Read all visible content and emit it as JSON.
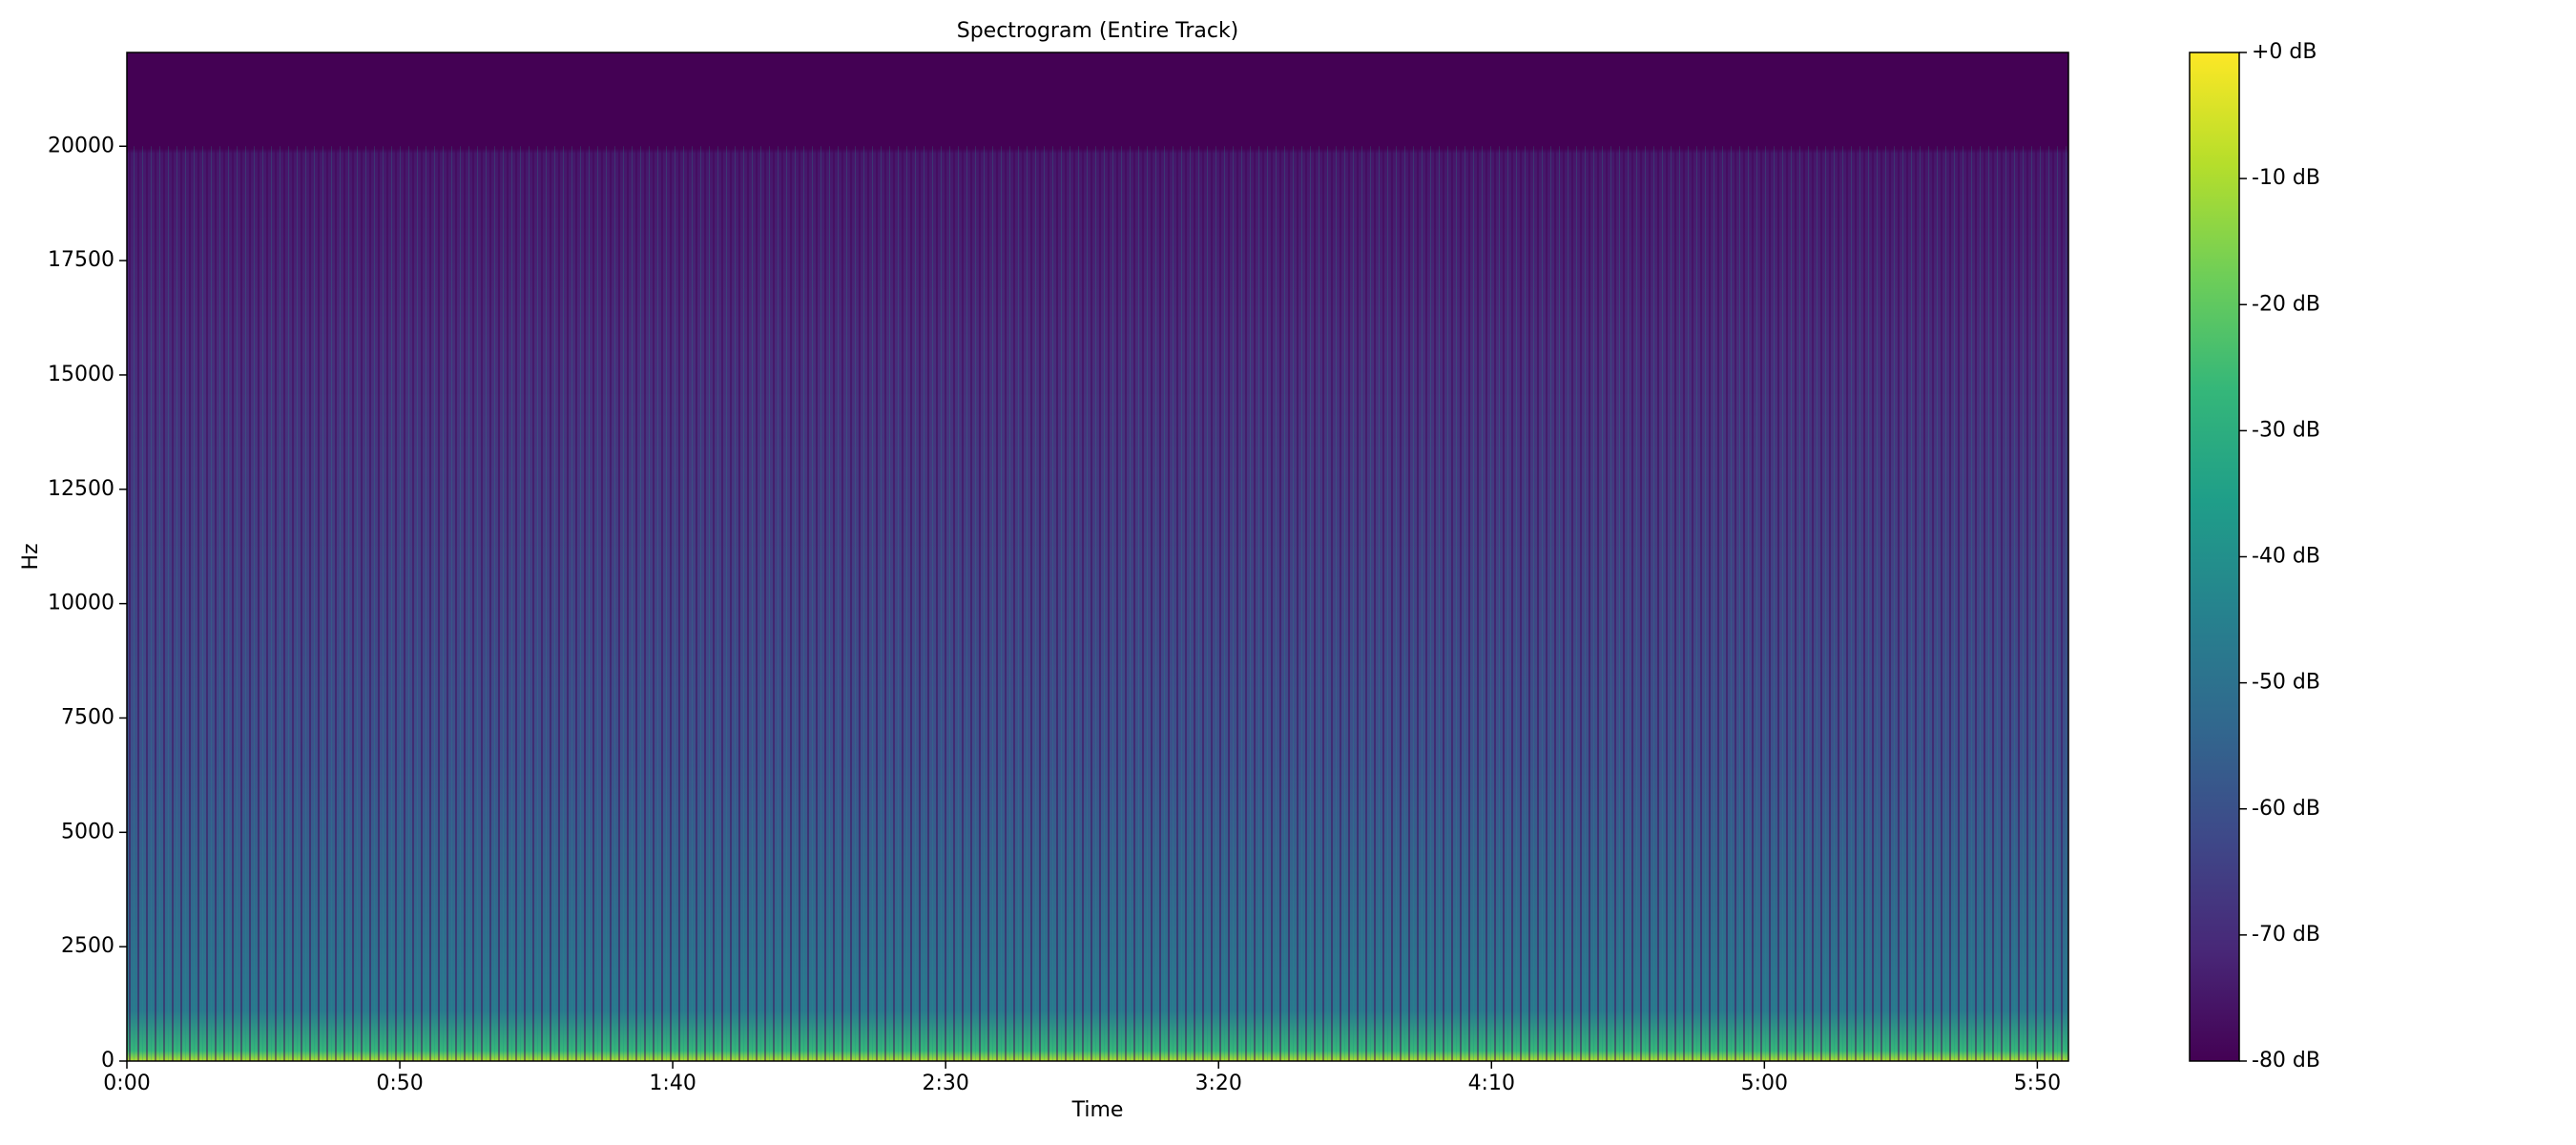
{
  "chart_data": {
    "type": "spectrogram",
    "title": "Spectrogram (Entire Track)",
    "xlabel": "Time",
    "ylabel": "Hz",
    "xlim": [
      0,
      355.7
    ],
    "xticks": [
      {
        "value": 0,
        "label": "0:00"
      },
      {
        "value": 50,
        "label": "0:50"
      },
      {
        "value": 100,
        "label": "1:40"
      },
      {
        "value": 150,
        "label": "2:30"
      },
      {
        "value": 200,
        "label": "3:20"
      },
      {
        "value": 250,
        "label": "4:10"
      },
      {
        "value": 300,
        "label": "5:00"
      },
      {
        "value": 350,
        "label": "5:50"
      }
    ],
    "ylim": [
      0,
      22050
    ],
    "yticks": [
      0,
      2500,
      5000,
      7500,
      10000,
      12500,
      15000,
      17500,
      20000
    ],
    "colormap": "viridis",
    "colorbar": {
      "lim": [
        -80,
        0
      ],
      "ticks": [
        {
          "value": 0,
          "label": "+0 dB"
        },
        {
          "value": -10,
          "label": "-10 dB"
        },
        {
          "value": -20,
          "label": "-20 dB"
        },
        {
          "value": -30,
          "label": "-30 dB"
        },
        {
          "value": -40,
          "label": "-40 dB"
        },
        {
          "value": -50,
          "label": "-50 dB"
        },
        {
          "value": -60,
          "label": "-60 dB"
        },
        {
          "value": -70,
          "label": "-70 dB"
        },
        {
          "value": -80,
          "label": "-80 dB"
        }
      ]
    }
  }
}
